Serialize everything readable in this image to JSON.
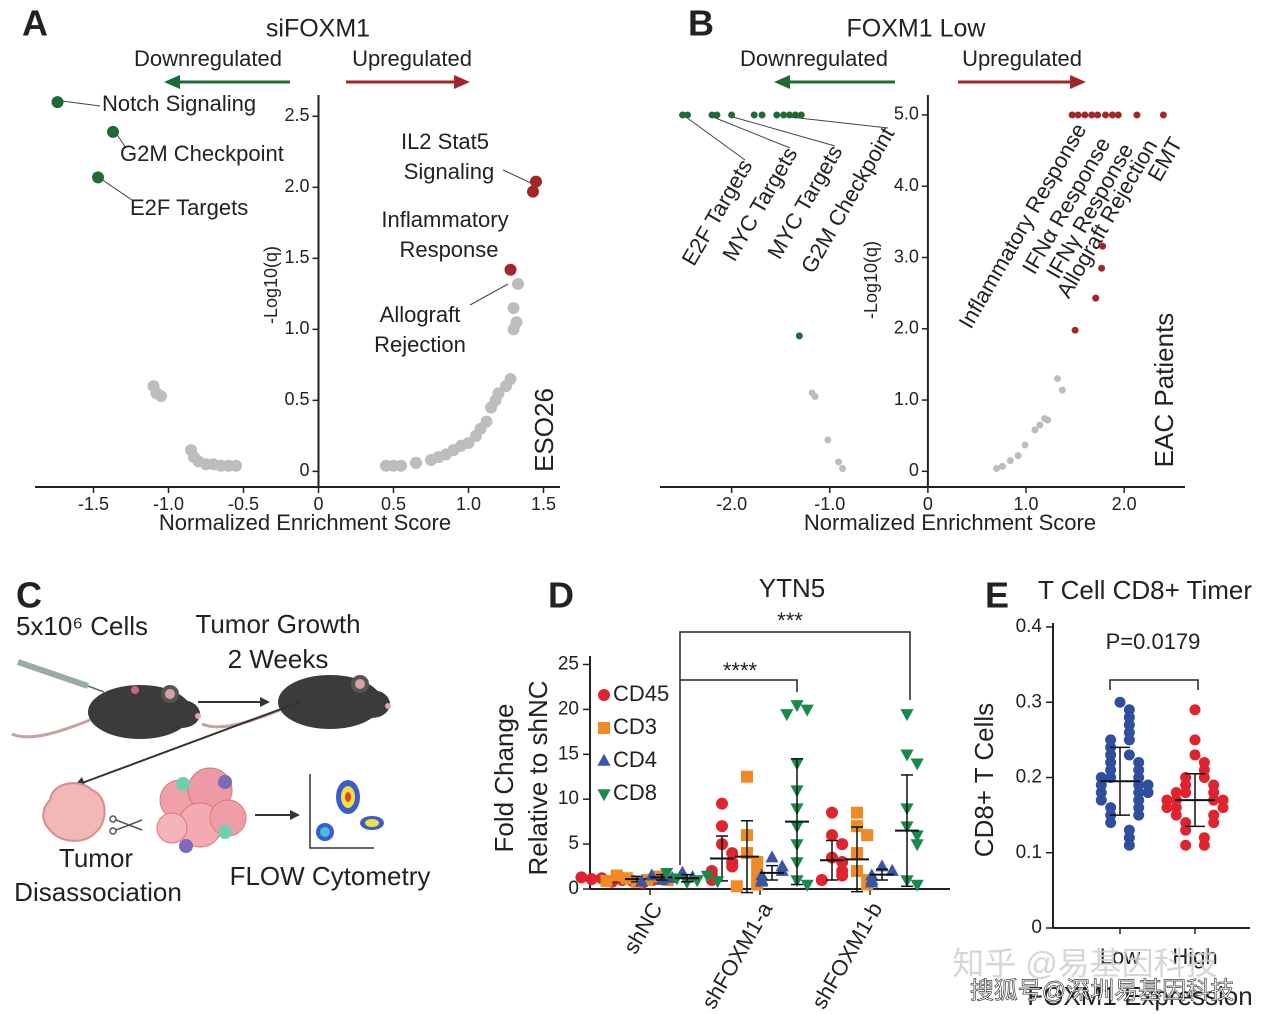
{
  "panel_labels": [
    "A",
    "B",
    "C",
    "D",
    "E"
  ],
  "chart_data": [
    {
      "type": "scatter",
      "title": "siFOXM1",
      "direction_labels": [
        "Downregulated",
        "Upregulated"
      ],
      "x_label": "Normalized Enrichment Score",
      "y_label": "-Log10(q)",
      "side_label": "ESO26",
      "xlim": [
        -1.89,
        1.61
      ],
      "ylim": [
        -0.11,
        2.65
      ],
      "xticks": [
        -1.5,
        {
          "value": -1,
          "label": "-1.0"
        },
        -0.5,
        0,
        0.5,
        {
          "value": 1,
          "label": "1.0"
        },
        1.5
      ],
      "yticks": [
        0,
        0.5,
        {
          "value": 1,
          "label": "1.0"
        },
        1.5,
        {
          "value": 2,
          "label": "2.0"
        },
        2.5
      ],
      "series": [
        {
          "color": "#1e6b35",
          "x": [
            -1.74,
            -1.37,
            -1.47
          ],
          "values": [
            2.6,
            2.39,
            2.07
          ]
        },
        {
          "color": "#a3262a",
          "x": [
            1.45,
            1.43,
            1.28
          ],
          "values": [
            2.04,
            1.97,
            1.42
          ]
        },
        {
          "color": "#bdbdbd",
          "x": [
            -1.1,
            -1.08,
            -1.05,
            -0.85,
            -0.83,
            -0.8,
            -0.75,
            -0.7,
            -0.65,
            -0.6,
            -0.55,
            0.45,
            0.5,
            0.55,
            0.65,
            0.75,
            0.8,
            0.85,
            0.9,
            0.95,
            1.0,
            1.05,
            1.08,
            1.12,
            1.15,
            1.18,
            1.2,
            1.25,
            1.28,
            1.3,
            1.32,
            1.3,
            1.33
          ],
          "values": [
            0.6,
            0.55,
            0.53,
            0.15,
            0.1,
            0.07,
            0.05,
            0.05,
            0.04,
            0.04,
            0.04,
            0.04,
            0.04,
            0.04,
            0.06,
            0.08,
            0.1,
            0.12,
            0.15,
            0.18,
            0.2,
            0.25,
            0.3,
            0.35,
            0.45,
            0.5,
            0.55,
            0.6,
            0.65,
            1.0,
            1.05,
            1.15,
            1.32
          ]
        }
      ],
      "annotations": [
        [
          "Notch Signaling"
        ],
        [
          "G2M Checkpoint"
        ],
        [
          "E2F Targets"
        ],
        [
          "IL2 Stat5",
          "Signaling"
        ],
        [
          "Inflammatory",
          "Response"
        ],
        [
          "Allograft",
          "Rejection"
        ]
      ]
    },
    {
      "type": "scatter",
      "title": "FOXM1 Low",
      "direction_labels": [
        "Downregulated",
        "Upregulated"
      ],
      "x_label": "Normalized Enrichment Score",
      "y_label": "-Log10(q)",
      "side_label": "EAC Patients",
      "xlim": [
        -2.73,
        2.62
      ],
      "ylim": [
        -0.22,
        5.28
      ],
      "xticks": [
        {
          "value": -2,
          "label": "-2.0"
        },
        {
          "value": -1,
          "label": "-1.0"
        },
        0,
        {
          "value": 1,
          "label": "1.0"
        },
        {
          "value": 2,
          "label": "2.0"
        }
      ],
      "yticks": [
        0,
        {
          "value": 1,
          "label": "1.0"
        },
        {
          "value": 2,
          "label": "2.0"
        },
        {
          "value": 3,
          "label": "3.0"
        },
        {
          "value": 4,
          "label": "4.0"
        },
        {
          "value": 5,
          "label": "5.0"
        }
      ],
      "series": [
        {
          "color": "#1e6b35",
          "x": [
            -2.5,
            -2.45,
            -2.2,
            -2.15,
            -2.0,
            -1.77,
            -1.69,
            -1.54,
            -1.47,
            -1.41,
            -1.35,
            -1.29,
            -1.31
          ],
          "values": [
            5,
            5,
            5,
            5,
            5,
            5,
            5,
            5,
            5,
            5,
            5,
            5,
            1.9
          ]
        },
        {
          "color": "#a3262a",
          "x": [
            1.47,
            1.53,
            1.6,
            1.67,
            1.73,
            1.81,
            1.88,
            1.94,
            2.13,
            2.4,
            1.78,
            1.77,
            1.71,
            1.5
          ],
          "values": [
            5,
            5,
            5,
            5,
            5,
            5,
            5,
            5,
            5,
            5,
            3.16,
            2.85,
            2.43,
            1.98
          ]
        },
        {
          "color": "#bdbdbd",
          "x": [
            -1.18,
            -1.15,
            -1.02,
            -0.91,
            -0.87,
            0.7,
            0.76,
            0.84,
            0.92,
            0.99,
            1.09,
            1.14,
            1.19,
            1.22,
            1.32,
            1.37
          ],
          "values": [
            1.1,
            1.05,
            0.44,
            0.13,
            0.04,
            0.04,
            0.07,
            0.15,
            0.22,
            0.37,
            0.58,
            0.65,
            0.74,
            0.72,
            1.3,
            1.14
          ]
        }
      ],
      "annotations": [
        [
          "E2F Targets"
        ],
        [
          "MYC Targets"
        ],
        [
          "MYC Targets"
        ],
        [
          "G2M Checkpoint"
        ],
        [
          "Inflammatory Response"
        ],
        [
          "IFNα Response"
        ],
        [
          "IFNγ Response"
        ],
        [
          "Allograft Rejection"
        ],
        [
          "EMT"
        ]
      ]
    },
    {
      "type": "dot",
      "title": "YTN5",
      "y_label": [
        "Fold Change",
        "Relative to shNC"
      ],
      "categories": [
        "shNC",
        "shFOXM1-a",
        "shFOXM1-b"
      ],
      "ylim": [
        0,
        25.5
      ],
      "yticks": [
        0,
        5,
        10,
        15,
        20,
        25
      ],
      "series": [
        {
          "name": "CD45",
          "color": "#e0242f",
          "marker": "circle",
          "values": [
            [
              0.8,
              1,
              1.2,
              0.9,
              1.1,
              0.7,
              1.3,
              1
            ],
            [
              9.5,
              7,
              5,
              4,
              3,
              2.5,
              2,
              1.5,
              1
            ],
            [
              8.5,
              6,
              5,
              3.5,
              3,
              2,
              1.5,
              1
            ]
          ],
          "mean": [
            1,
            3.4,
            3.2
          ],
          "sd": [
            0.2,
            2.5,
            2.2
          ]
        },
        {
          "name": "CD3",
          "color": "#f08a24",
          "marker": "square",
          "values": [
            [
              0.8,
              1,
              1.2,
              1.4,
              1.5,
              1,
              0.9
            ],
            [
              12.5,
              6,
              4,
              3,
              2,
              1,
              0.5,
              0.3
            ],
            [
              8.5,
              7,
              6,
              4,
              2,
              1,
              0.5
            ]
          ],
          "mean": [
            1.1,
            3.6,
            3.3
          ],
          "sd": [
            0.3,
            4,
            3.6
          ]
        },
        {
          "name": "CD4",
          "color": "#3a55a4",
          "marker": "triangle",
          "values": [
            [
              1,
              1.2,
              1.5,
              1.8,
              0.8,
              1.3
            ],
            [
              3.5,
              2.5,
              2,
              1.5,
              1,
              0.8
            ],
            [
              2.5,
              2,
              1.5,
              1,
              0.7
            ]
          ],
          "mean": [
            1.3,
            1.8,
            1.6
          ],
          "sd": [
            0.3,
            0.8,
            0.6
          ]
        },
        {
          "name": "CD8",
          "color": "#1a8a4a",
          "marker": "triangle-down",
          "values": [
            [
              0.8,
              1,
              1.2,
              1.5,
              1.8,
              0.9
            ],
            [
              20.5,
              20,
              19.5,
              14,
              11,
              9,
              7,
              5,
              3,
              1,
              0.5
            ],
            [
              19.5,
              15,
              14,
              9,
              7,
              6,
              5,
              1,
              0.5
            ]
          ],
          "mean": [
            1.2,
            7.5,
            6.5
          ],
          "sd": [
            0.4,
            7,
            6.2
          ]
        }
      ],
      "annotations": [
        "****",
        "***"
      ]
    },
    {
      "type": "dot",
      "title": "T Cell CD8+ Timer",
      "y_label": [
        "CD8+ T Cells"
      ],
      "x_label": "FOXM1 Expression",
      "categories": [
        "Low",
        "High"
      ],
      "colors": [
        "#2f4f9e",
        "#e0242f"
      ],
      "marker": "circle",
      "ylim": [
        0,
        0.4
      ],
      "yticks": [
        0,
        0.1,
        0.2,
        0.3,
        0.4
      ],
      "values": [
        [
          0.3,
          0.29,
          0.28,
          0.27,
          0.26,
          0.25,
          0.25,
          0.24,
          0.23,
          0.23,
          0.22,
          0.22,
          0.21,
          0.21,
          0.2,
          0.2,
          0.2,
          0.19,
          0.19,
          0.19,
          0.18,
          0.18,
          0.18,
          0.17,
          0.17,
          0.16,
          0.16,
          0.15,
          0.15,
          0.14,
          0.13,
          0.12,
          0.11
        ],
        [
          0.29,
          0.25,
          0.23,
          0.22,
          0.21,
          0.2,
          0.2,
          0.19,
          0.19,
          0.18,
          0.18,
          0.18,
          0.17,
          0.17,
          0.17,
          0.17,
          0.16,
          0.16,
          0.16,
          0.15,
          0.15,
          0.14,
          0.14,
          0.13,
          0.12,
          0.11,
          0.11
        ]
      ],
      "mean": [
        0.195,
        0.17
      ],
      "sd": [
        0.045,
        0.035
      ],
      "annotations": [
        "P=0.0179"
      ]
    }
  ],
  "diagram": {
    "labels": [
      "5x10⁶ Cells",
      "Tumor Growth",
      "2 Weeks",
      "Tumor",
      "Disassociation",
      "FLOW Cytometry"
    ]
  },
  "watermarks": [
    "知乎 @易基因科技",
    "搜狐号@深圳易基因科技"
  ]
}
